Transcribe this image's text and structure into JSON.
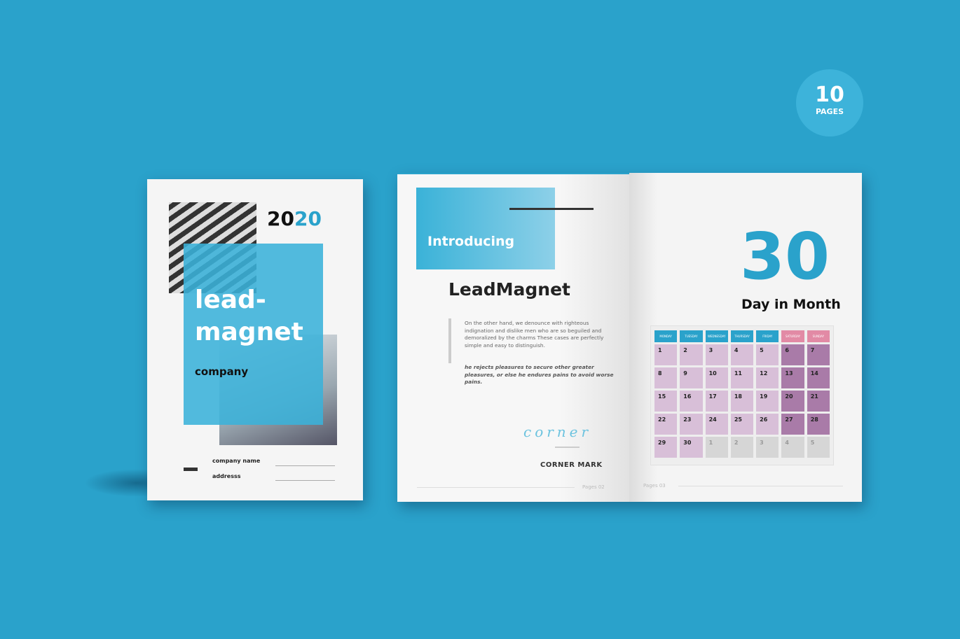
{
  "badge": {
    "number": "10",
    "label": "PAGES"
  },
  "cover": {
    "year_a": "20",
    "year_b": "20",
    "title_line1": "lead-",
    "title_line2": "magnet",
    "subtitle": "company",
    "field1": "company name",
    "field2": "addresss"
  },
  "left_page": {
    "banner": "Introducing",
    "title": "LeadMagnet",
    "paragraph": "On the other hand, we denounce with righteous indignation and dislike men who are so beguiled and demoralized by the charms These cases are perfectly simple and easy to distinguish.",
    "quote": "he rejects pleasures to secure other greater pleasures, or else he endures pains to avoid worse pains.",
    "signature": "corner",
    "signature_name": "CORNER MARK",
    "footer": "Pages  02"
  },
  "right_page": {
    "big_number": "30",
    "heading": "Day in Month",
    "footer": "Pages  03",
    "days": [
      "MONDAY",
      "TUESDAY",
      "WEDNESDAY",
      "THURSDAY",
      "FRIDAY",
      "SATURDAY",
      "SUNDAY"
    ],
    "dates": [
      "1",
      "2",
      "3",
      "4",
      "5",
      "6",
      "7",
      "8",
      "9",
      "10",
      "11",
      "12",
      "13",
      "14",
      "15",
      "16",
      "17",
      "18",
      "19",
      "20",
      "21",
      "22",
      "23",
      "24",
      "25",
      "26",
      "27",
      "28",
      "29",
      "30",
      "1",
      "2",
      "3",
      "4",
      "5"
    ],
    "colors": {
      "weekday_header": "#2aa2cb",
      "weekend_header": "#e28aa5",
      "weekday_cell": "#d8bfd8",
      "weekend_cell": "#a97ba8",
      "next_month_cell": "#d6d6d6"
    }
  }
}
